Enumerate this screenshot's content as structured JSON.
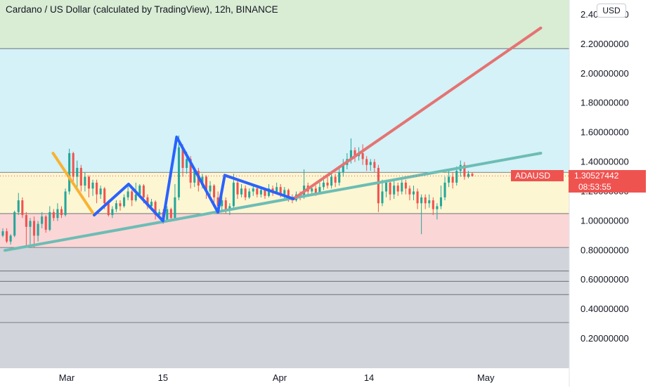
{
  "header": {
    "title": "Cardano / US Dollar (calculated by TradingView), 12h, BINANCE",
    "currency_button": "USD"
  },
  "price_tags": {
    "symbol": "ADAUSD",
    "last_price": "1.30527442",
    "countdown": "08:53:55"
  },
  "colors": {
    "up": "#26a69a",
    "down": "#ef5350",
    "zone_green": "#d9ecd4",
    "zone_cyan": "#d4f2f7",
    "zone_yellow": "#fdf6d2",
    "zone_pink": "#fbd6d6",
    "zone_gray": "#d1d4da",
    "trendline_teal": "#6cbdb5",
    "trendline_red": "#e57373",
    "pattern_blue": "#2962ff",
    "pattern_orange": "#f9b233"
  },
  "chart_data": {
    "type": "candlestick",
    "y_axis_ticks": [
      "2.40000000",
      "2.20000000",
      "2.00000000",
      "1.80000000",
      "1.60000000",
      "1.40000000",
      "1.20000000",
      "1.00000000",
      "0.80000000",
      "0.60000000",
      "0.40000000",
      "0.20000000"
    ],
    "x_axis_labels": [
      "Mar",
      "15",
      "Apr",
      "14",
      "May"
    ],
    "ylim": [
      0.0,
      2.5
    ],
    "zones": [
      {
        "from": 2.17,
        "to": 2.5,
        "color": "zone_green"
      },
      {
        "from": 1.33,
        "to": 2.17,
        "color": "zone_cyan"
      },
      {
        "from": 1.05,
        "to": 1.33,
        "color": "zone_yellow"
      },
      {
        "from": 0.82,
        "to": 1.05,
        "color": "zone_pink"
      },
      {
        "from": 0.0,
        "to": 0.82,
        "color": "zone_gray"
      }
    ],
    "horizontal_levels": [
      2.17,
      1.33,
      1.05,
      0.82,
      0.66,
      0.59,
      0.5,
      0.31
    ],
    "trendlines": [
      {
        "color": "trendline_teal",
        "points": [
          [
            "Feb 20",
            0.8
          ],
          [
            "May 09",
            1.46
          ]
        ]
      },
      {
        "color": "trendline_red",
        "points": [
          [
            "Apr 03",
            1.15
          ],
          [
            "May 09",
            2.31
          ]
        ]
      }
    ],
    "pattern_lines": [
      {
        "color": "pattern_orange",
        "points": [
          [
            "Feb 27",
            1.46
          ],
          [
            "Mar 05",
            1.04
          ]
        ]
      },
      {
        "color": "pattern_blue",
        "points": [
          [
            "Mar 05",
            1.04
          ],
          [
            "Mar 10",
            1.25
          ],
          [
            "Mar 15",
            1.0
          ],
          [
            "Mar 17",
            1.57
          ],
          [
            "Mar 23",
            1.06
          ],
          [
            "Mar 24",
            1.31
          ],
          [
            "Apr 03",
            1.15
          ]
        ]
      }
    ],
    "candles": [
      [
        0.9,
        0.93,
        0.95,
        0.89
      ],
      [
        0.93,
        0.86,
        0.95,
        0.85
      ],
      [
        0.86,
        0.9,
        0.91,
        0.84
      ],
      [
        0.9,
        1.06,
        1.07,
        0.89
      ],
      [
        1.06,
        1.14,
        1.19,
        1.04
      ],
      [
        1.14,
        1.04,
        1.16,
        1.02
      ],
      [
        1.04,
        0.96,
        1.06,
        0.82
      ],
      [
        0.96,
        1.0,
        1.02,
        0.84
      ],
      [
        1.0,
        0.9,
        1.03,
        0.82
      ],
      [
        0.9,
        0.98,
        1.0,
        0.86
      ],
      [
        0.98,
        1.03,
        1.06,
        0.95
      ],
      [
        1.03,
        0.94,
        1.04,
        0.92
      ],
      [
        0.94,
        1.06,
        1.1,
        0.93
      ],
      [
        1.06,
        1.02,
        1.08,
        1.0
      ],
      [
        1.02,
        1.08,
        1.12,
        1.0
      ],
      [
        1.08,
        1.04,
        1.1,
        1.02
      ],
      [
        1.04,
        1.2,
        1.22,
        1.03
      ],
      [
        1.2,
        1.46,
        1.49,
        1.18
      ],
      [
        1.46,
        1.3,
        1.47,
        1.25
      ],
      [
        1.3,
        1.36,
        1.41,
        1.23
      ],
      [
        1.36,
        1.24,
        1.38,
        1.2
      ],
      [
        1.24,
        1.3,
        1.33,
        1.2
      ],
      [
        1.3,
        1.22,
        1.31,
        1.16
      ],
      [
        1.22,
        1.26,
        1.28,
        1.17
      ],
      [
        1.26,
        1.18,
        1.28,
        1.12
      ],
      [
        1.18,
        1.22,
        1.24,
        1.15
      ],
      [
        1.22,
        1.12,
        1.23,
        1.08
      ],
      [
        1.12,
        1.04,
        1.14,
        1.03
      ],
      [
        1.04,
        1.08,
        1.1,
        1.02
      ],
      [
        1.08,
        1.12,
        1.14,
        1.06
      ],
      [
        1.12,
        1.1,
        1.14,
        1.07
      ],
      [
        1.1,
        1.16,
        1.18,
        1.09
      ],
      [
        1.16,
        1.2,
        1.24,
        1.14
      ],
      [
        1.2,
        1.14,
        1.21,
        1.1
      ],
      [
        1.14,
        1.18,
        1.26,
        1.13
      ],
      [
        1.18,
        1.24,
        1.25,
        1.16
      ],
      [
        1.24,
        1.16,
        1.25,
        1.12
      ],
      [
        1.16,
        1.1,
        1.18,
        1.08
      ],
      [
        1.1,
        1.13,
        1.15,
        1.07
      ],
      [
        1.13,
        1.04,
        1.14,
        1.01
      ],
      [
        1.04,
        1.06,
        1.08,
        1.02
      ],
      [
        1.06,
        1.0,
        1.08,
        0.98
      ],
      [
        1.0,
        1.08,
        1.1,
        0.99
      ],
      [
        1.08,
        1.02,
        1.09,
        1.0
      ],
      [
        1.02,
        1.16,
        1.25,
        1.01
      ],
      [
        1.16,
        1.5,
        1.58,
        1.14
      ],
      [
        1.5,
        1.36,
        1.52,
        1.3
      ],
      [
        1.36,
        1.42,
        1.47,
        1.32
      ],
      [
        1.42,
        1.26,
        1.44,
        1.22
      ],
      [
        1.26,
        1.34,
        1.36,
        1.23
      ],
      [
        1.34,
        1.24,
        1.36,
        1.2
      ],
      [
        1.24,
        1.3,
        1.32,
        1.22
      ],
      [
        1.3,
        1.2,
        1.31,
        1.15
      ],
      [
        1.2,
        1.24,
        1.27,
        1.16
      ],
      [
        1.24,
        1.16,
        1.25,
        1.12
      ],
      [
        1.16,
        1.1,
        1.2,
        1.08
      ],
      [
        1.1,
        1.14,
        1.17,
        1.07
      ],
      [
        1.14,
        1.08,
        1.16,
        1.05
      ],
      [
        1.08,
        1.1,
        1.12,
        1.04
      ],
      [
        1.1,
        1.26,
        1.32,
        1.08
      ],
      [
        1.26,
        1.18,
        1.28,
        1.15
      ],
      [
        1.18,
        1.22,
        1.25,
        1.16
      ],
      [
        1.22,
        1.16,
        1.24,
        1.14
      ],
      [
        1.16,
        1.2,
        1.22,
        1.15
      ],
      [
        1.2,
        1.22,
        1.24,
        1.17
      ],
      [
        1.22,
        1.18,
        1.23,
        1.16
      ],
      [
        1.18,
        1.21,
        1.23,
        1.16
      ],
      [
        1.21,
        1.17,
        1.22,
        1.15
      ],
      [
        1.17,
        1.22,
        1.25,
        1.16
      ],
      [
        1.22,
        1.19,
        1.24,
        1.17
      ],
      [
        1.19,
        1.23,
        1.26,
        1.18
      ],
      [
        1.23,
        1.18,
        1.25,
        1.16
      ],
      [
        1.18,
        1.21,
        1.23,
        1.15
      ],
      [
        1.21,
        1.16,
        1.22,
        1.13
      ],
      [
        1.16,
        1.14,
        1.18,
        1.12
      ],
      [
        1.14,
        1.18,
        1.2,
        1.13
      ],
      [
        1.18,
        1.16,
        1.2,
        1.14
      ],
      [
        1.16,
        1.24,
        1.35,
        1.15
      ],
      [
        1.24,
        1.2,
        1.26,
        1.17
      ],
      [
        1.2,
        1.22,
        1.24,
        1.18
      ],
      [
        1.22,
        1.19,
        1.24,
        1.17
      ],
      [
        1.19,
        1.23,
        1.26,
        1.18
      ],
      [
        1.23,
        1.26,
        1.28,
        1.21
      ],
      [
        1.26,
        1.24,
        1.3,
        1.22
      ],
      [
        1.24,
        1.3,
        1.33,
        1.22
      ],
      [
        1.3,
        1.26,
        1.32,
        1.23
      ],
      [
        1.26,
        1.33,
        1.36,
        1.24
      ],
      [
        1.33,
        1.38,
        1.42,
        1.3
      ],
      [
        1.38,
        1.42,
        1.46,
        1.35
      ],
      [
        1.42,
        1.48,
        1.56,
        1.39
      ],
      [
        1.48,
        1.44,
        1.5,
        1.4
      ],
      [
        1.44,
        1.46,
        1.5,
        1.41
      ],
      [
        1.46,
        1.42,
        1.52,
        1.38
      ],
      [
        1.42,
        1.38,
        1.44,
        1.34
      ],
      [
        1.38,
        1.4,
        1.42,
        1.34
      ],
      [
        1.4,
        1.36,
        1.42,
        1.33
      ],
      [
        1.36,
        1.12,
        1.38,
        1.06
      ],
      [
        1.12,
        1.2,
        1.28,
        1.1
      ],
      [
        1.2,
        1.26,
        1.28,
        1.16
      ],
      [
        1.26,
        1.18,
        1.28,
        1.14
      ],
      [
        1.18,
        1.24,
        1.27,
        1.15
      ],
      [
        1.24,
        1.2,
        1.26,
        1.17
      ],
      [
        1.2,
        1.26,
        1.28,
        1.18
      ],
      [
        1.26,
        1.22,
        1.28,
        1.18
      ],
      [
        1.22,
        1.18,
        1.24,
        1.14
      ],
      [
        1.18,
        1.2,
        1.24,
        1.14
      ],
      [
        1.2,
        1.12,
        1.22,
        1.08
      ],
      [
        1.12,
        1.16,
        1.18,
        0.91
      ],
      [
        1.16,
        1.12,
        1.18,
        1.08
      ],
      [
        1.12,
        1.14,
        1.18,
        1.09
      ],
      [
        1.14,
        1.08,
        1.16,
        1.04
      ],
      [
        1.08,
        1.1,
        1.12,
        1.01
      ],
      [
        1.1,
        1.16,
        1.24,
        1.08
      ],
      [
        1.16,
        1.26,
        1.3,
        1.14
      ],
      [
        1.26,
        1.3,
        1.34,
        1.23
      ],
      [
        1.3,
        1.26,
        1.33,
        1.22
      ],
      [
        1.26,
        1.34,
        1.37,
        1.24
      ],
      [
        1.34,
        1.38,
        1.41,
        1.3
      ],
      [
        1.38,
        1.3,
        1.4,
        1.28
      ],
      [
        1.3,
        1.32,
        1.34,
        1.29
      ],
      [
        1.32,
        1.305,
        1.33,
        1.3
      ]
    ]
  }
}
